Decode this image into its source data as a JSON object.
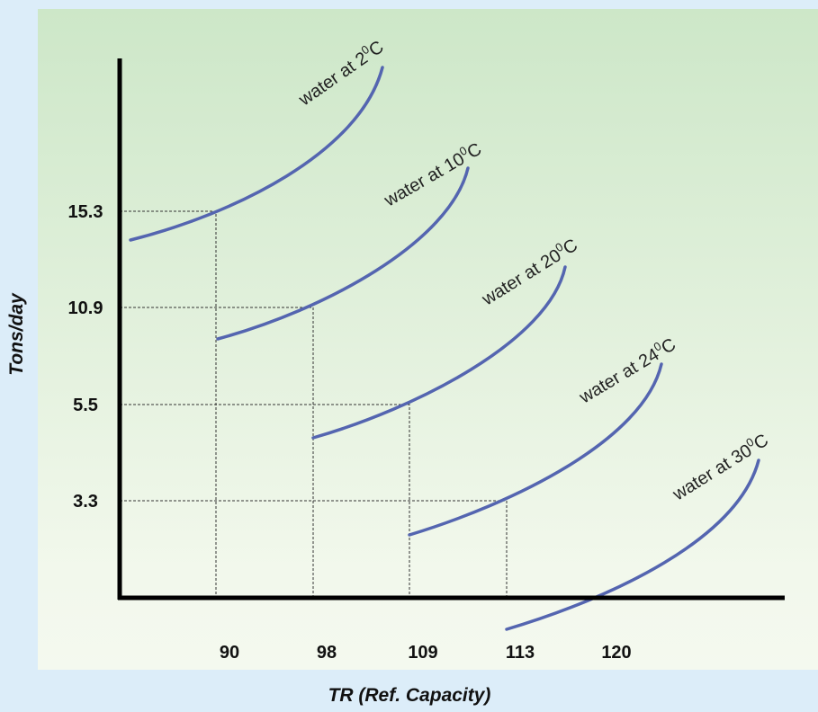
{
  "y_axis": {
    "label": "Tons/day",
    "ticks": [
      15.3,
      10.9,
      5.5,
      3.3
    ]
  },
  "x_axis": {
    "label": "TR (Ref. Capacity)",
    "ticks": [
      90,
      98,
      109,
      113,
      120
    ]
  },
  "curves": [
    {
      "text": "water at 2",
      "sup": "0",
      "unit": "C"
    },
    {
      "text": "water at 10",
      "sup": "0",
      "unit": "C"
    },
    {
      "text": "water at 20",
      "sup": "0",
      "unit": "C"
    },
    {
      "text": "water at 24",
      "sup": "0",
      "unit": "C"
    },
    {
      "text": "water at 30",
      "sup": "0",
      "unit": "C"
    }
  ]
}
